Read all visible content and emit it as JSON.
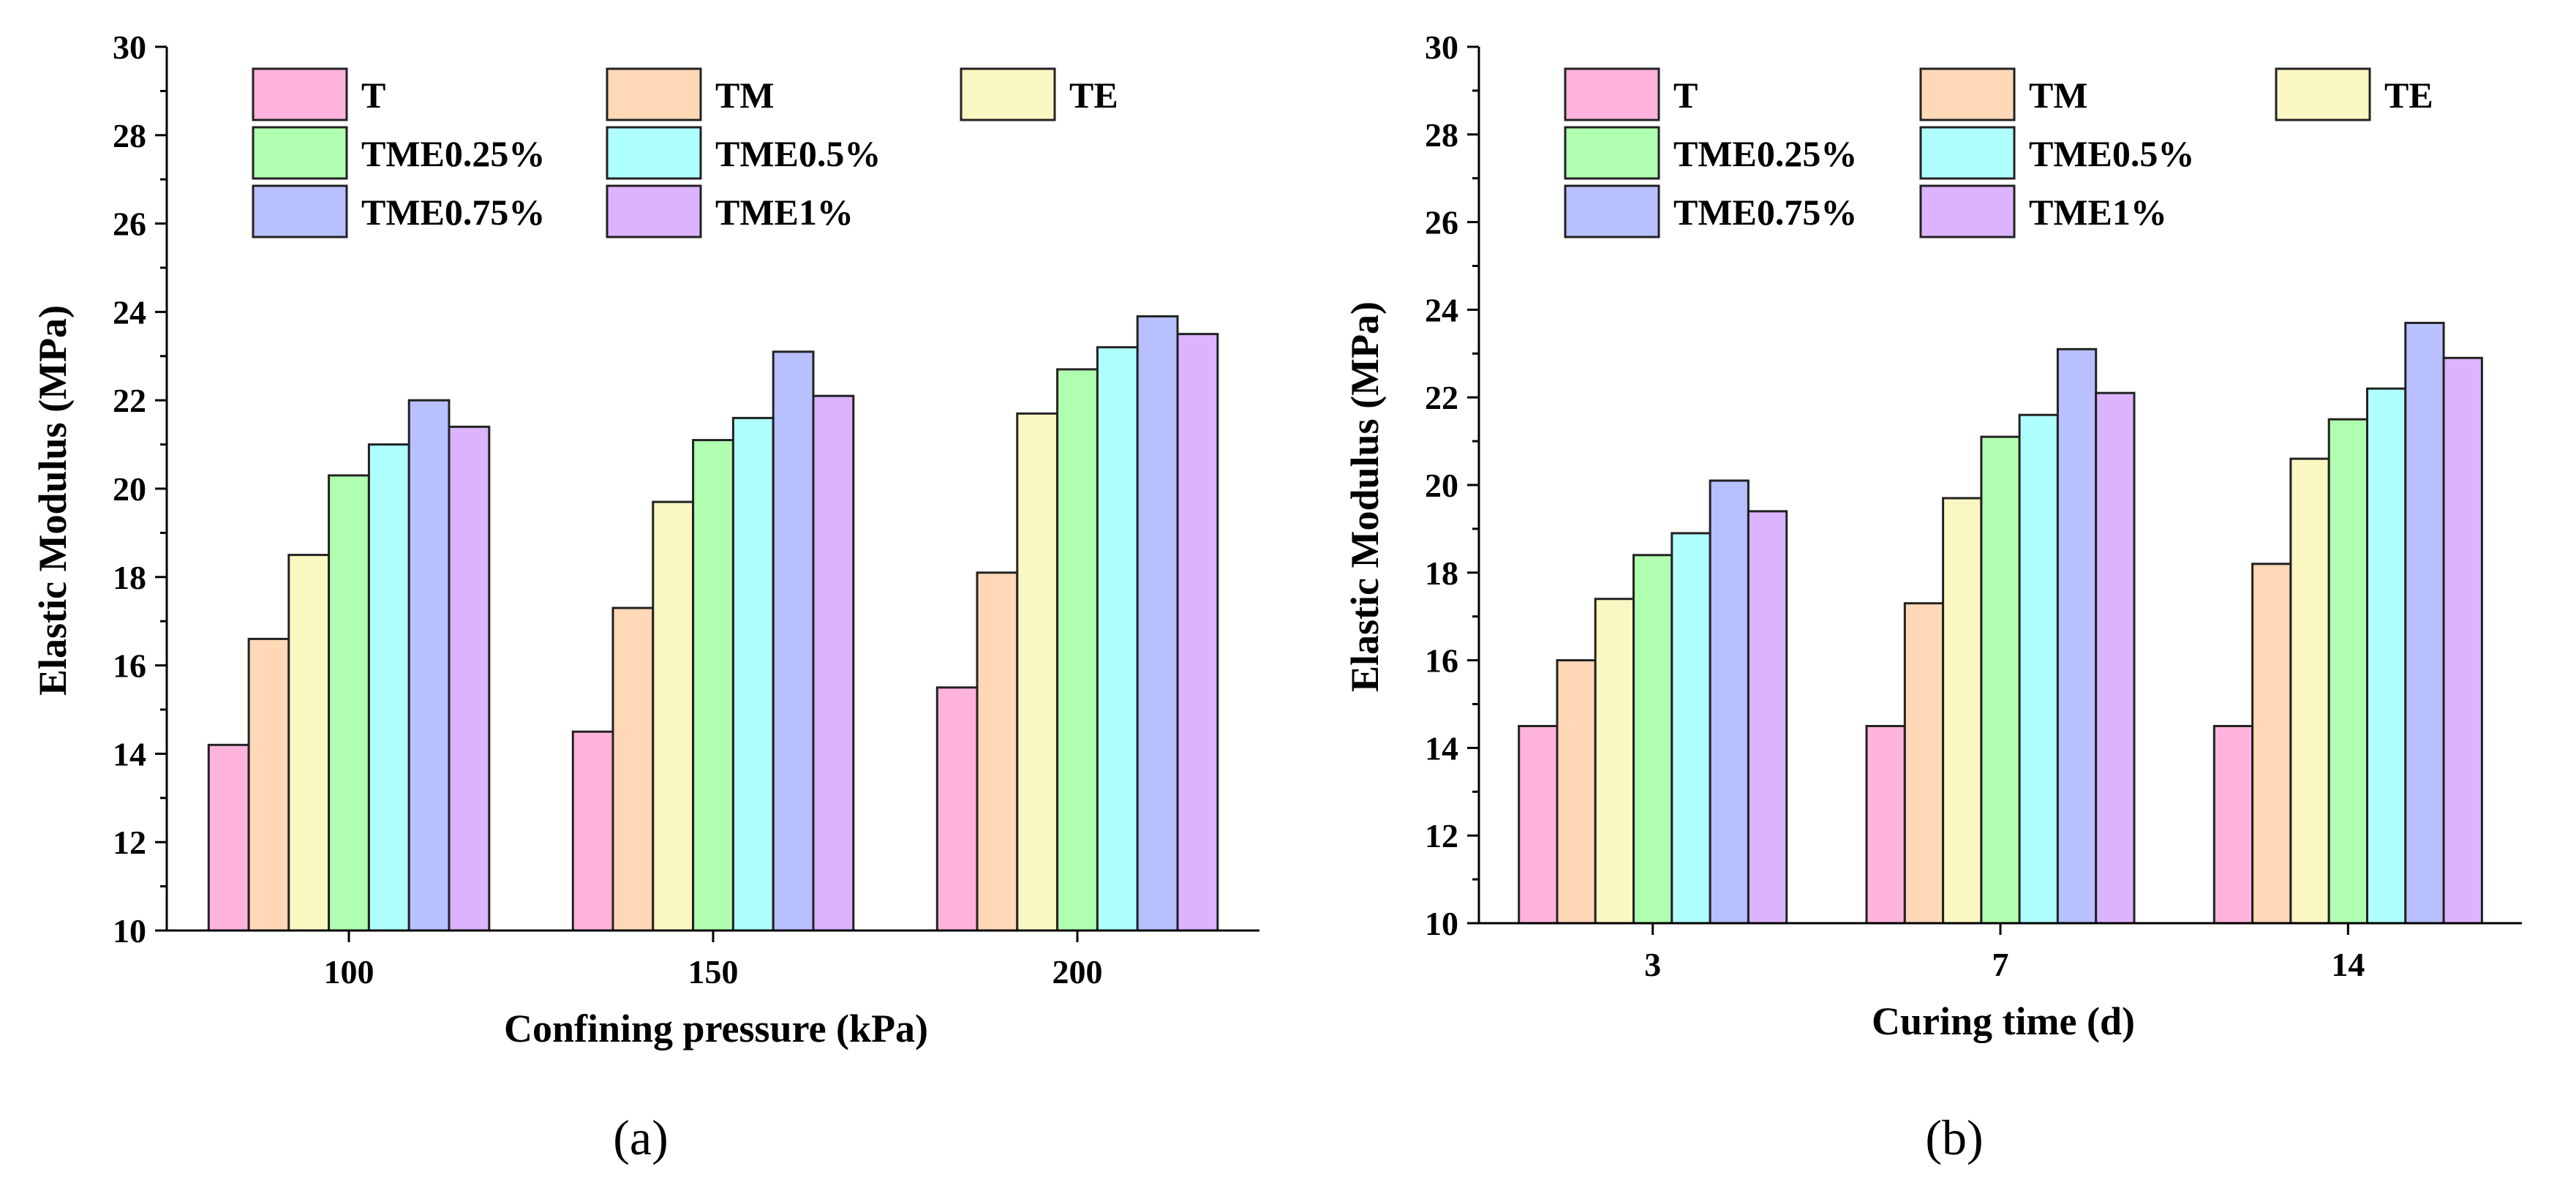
{
  "colors": {
    "T": "#ffb3dd",
    "TM": "#ffd8b8",
    "TE": "#fbf7c2",
    "TME0.25%": "#b0ffb0",
    "TME0.5%": "#b0ffff",
    "TME0.75%": "#b8c0ff",
    "TME1%": "#dcb3ff"
  },
  "chart_data": [
    {
      "type": "bar",
      "caption": "(a)",
      "xlabel": "Confining pressure (kPa)",
      "ylabel": "Elastic Modulus (MPa)",
      "ylim": [
        10,
        30
      ],
      "yticks": [
        "10",
        "12",
        "14",
        "16",
        "18",
        "20",
        "22",
        "24",
        "26",
        "28",
        "30"
      ],
      "categories": [
        "100",
        "150",
        "200"
      ],
      "legend_position": "top-left",
      "series": [
        {
          "name": "T",
          "values": [
            14.2,
            14.5,
            15.5
          ]
        },
        {
          "name": "TM",
          "values": [
            16.6,
            17.3,
            18.1
          ]
        },
        {
          "name": "TE",
          "values": [
            18.5,
            19.7,
            21.7
          ]
        },
        {
          "name": "TME0.25%",
          "values": [
            20.3,
            21.1,
            22.7
          ]
        },
        {
          "name": "TME0.5%",
          "values": [
            21.0,
            21.6,
            23.2
          ]
        },
        {
          "name": "TME0.75%",
          "values": [
            22.0,
            23.1,
            23.9
          ]
        },
        {
          "name": "TME1%",
          "values": [
            21.4,
            22.1,
            23.5
          ]
        }
      ]
    },
    {
      "type": "bar",
      "caption": "(b)",
      "xlabel": "Curing time (d)",
      "ylabel": "Elastic Modulus (MPa)",
      "ylim": [
        10,
        30
      ],
      "yticks": [
        "10",
        "12",
        "14",
        "16",
        "18",
        "20",
        "22",
        "24",
        "26",
        "28",
        "30"
      ],
      "categories": [
        "3",
        "7",
        "14"
      ],
      "legend_position": "top-left",
      "series": [
        {
          "name": "T",
          "values": [
            14.5,
            14.5,
            14.5
          ]
        },
        {
          "name": "TM",
          "values": [
            16.0,
            17.3,
            18.2
          ]
        },
        {
          "name": "TE",
          "values": [
            17.4,
            19.7,
            20.6
          ]
        },
        {
          "name": "TME0.25%",
          "values": [
            18.4,
            21.1,
            21.5
          ]
        },
        {
          "name": "TME0.5%",
          "values": [
            18.9,
            21.6,
            22.2
          ]
        },
        {
          "name": "TME0.75%",
          "values": [
            20.1,
            23.1,
            23.7
          ]
        },
        {
          "name": "TME1%",
          "values": [
            19.4,
            22.1,
            22.9
          ]
        }
      ]
    }
  ]
}
